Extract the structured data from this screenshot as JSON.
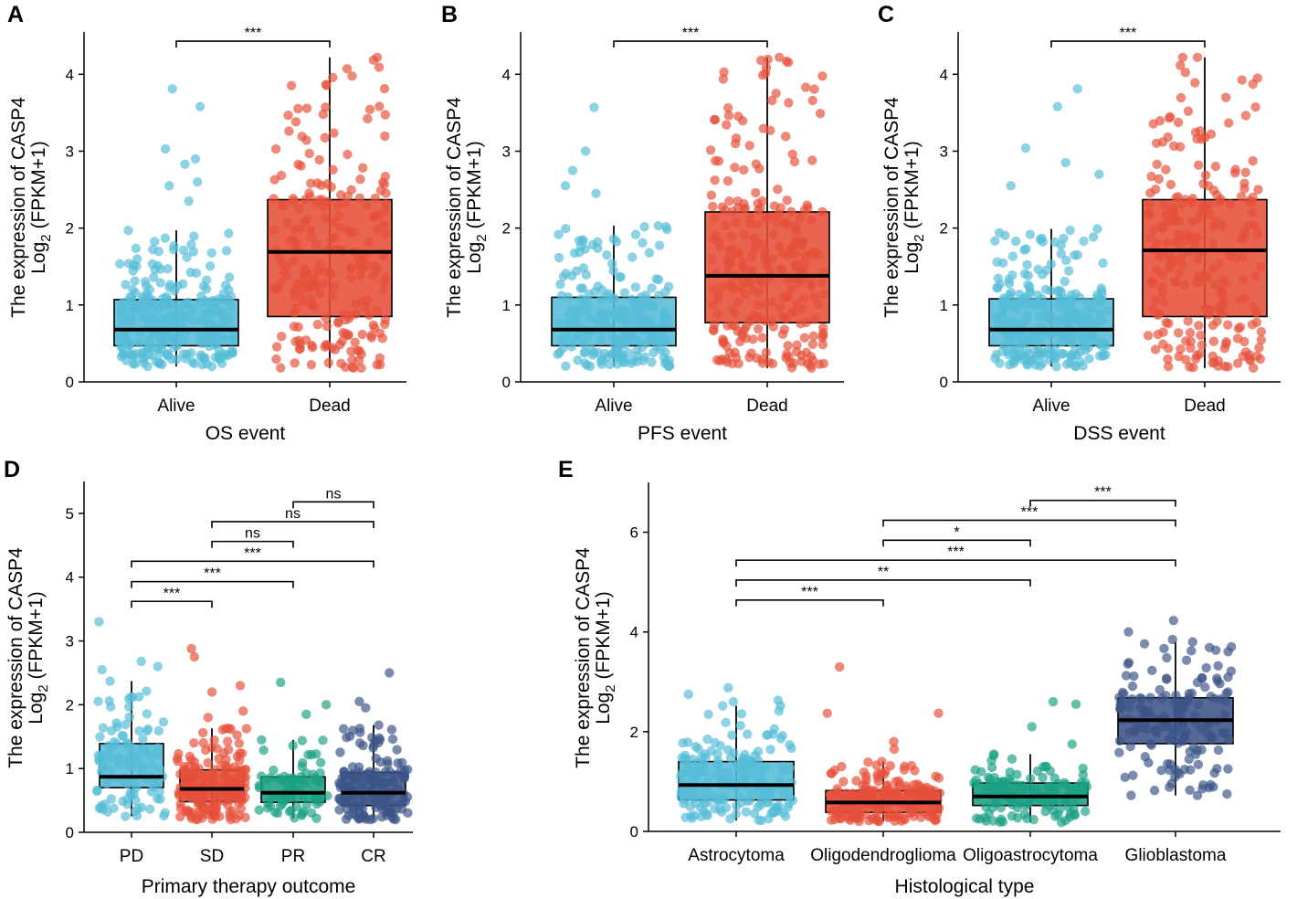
{
  "y_title_line1": "The expression of CASP4",
  "y_title_line2_prefix": "Log",
  "y_title_line2_sub": "2",
  "y_title_line2_suffix": " (FPKM+1)",
  "colors": {
    "blue": "#56BCD7",
    "red": "#E6503A",
    "green": "#1BA084",
    "navy": "#3C5488"
  },
  "chart_data": [
    {
      "panel": "A",
      "type": "box",
      "xlabel": "OS event",
      "ylim": [
        0,
        4.55
      ],
      "yticks": [
        0,
        1,
        2,
        3,
        4
      ],
      "categories": [
        "Alive",
        "Dead"
      ],
      "boxes": [
        {
          "q1": 0.47,
          "median": 0.68,
          "q3": 1.07,
          "whisker_low": 0.2,
          "whisker_high": 1.97,
          "n": 260,
          "outliers": [
            2.83,
            2.55,
            2.9,
            2.6,
            2.35,
            3.03,
            3.58,
            3.81
          ]
        },
        {
          "q1": 0.85,
          "median": 1.69,
          "q3": 2.37,
          "whisker_low": 0.18,
          "whisker_high": 4.22,
          "n": 230,
          "outliers": []
        }
      ],
      "comparisons": [
        {
          "from": 0,
          "to": 1,
          "label": "***",
          "y": 4.43
        }
      ]
    },
    {
      "panel": "B",
      "type": "box",
      "xlabel": "PFS event",
      "ylim": [
        0,
        4.55
      ],
      "yticks": [
        0,
        1,
        2,
        3,
        4
      ],
      "categories": [
        "Alive",
        "Dead"
      ],
      "boxes": [
        {
          "q1": 0.47,
          "median": 0.68,
          "q3": 1.1,
          "whisker_low": 0.2,
          "whisker_high": 2.03,
          "n": 220,
          "outliers": [
            2.75,
            2.55,
            2.45,
            3.0,
            3.57
          ]
        },
        {
          "q1": 0.77,
          "median": 1.38,
          "q3": 2.21,
          "whisker_low": 0.18,
          "whisker_high": 4.22,
          "n": 270,
          "outliers": []
        }
      ],
      "comparisons": [
        {
          "from": 0,
          "to": 1,
          "label": "***",
          "y": 4.43
        }
      ]
    },
    {
      "panel": "C",
      "type": "box",
      "xlabel": "DSS event",
      "ylim": [
        0,
        4.55
      ],
      "yticks": [
        0,
        1,
        2,
        3,
        4
      ],
      "categories": [
        "Alive",
        "Dead"
      ],
      "boxes": [
        {
          "q1": 0.47,
          "median": 0.68,
          "q3": 1.08,
          "whisker_low": 0.2,
          "whisker_high": 1.99,
          "n": 260,
          "outliers": [
            2.85,
            2.55,
            2.7,
            3.04,
            3.58,
            3.81
          ]
        },
        {
          "q1": 0.85,
          "median": 1.71,
          "q3": 2.37,
          "whisker_low": 0.18,
          "whisker_high": 4.22,
          "n": 230,
          "outliers": []
        }
      ],
      "comparisons": [
        {
          "from": 0,
          "to": 1,
          "label": "***",
          "y": 4.43
        }
      ]
    },
    {
      "panel": "D",
      "type": "box",
      "xlabel": "Primary therapy outcome",
      "ylim": [
        0,
        5.5
      ],
      "yticks": [
        0,
        1,
        2,
        3,
        4,
        5
      ],
      "categories": [
        "PD",
        "SD",
        "PR",
        "CR"
      ],
      "boxes": [
        {
          "q1": 0.7,
          "median": 0.87,
          "q3": 1.39,
          "whisker_low": 0.25,
          "whisker_high": 2.37,
          "n": 110,
          "outliers": [
            2.6,
            2.68,
            2.55,
            3.3
          ]
        },
        {
          "q1": 0.48,
          "median": 0.68,
          "q3": 0.98,
          "whisker_low": 0.2,
          "whisker_high": 1.63,
          "n": 170,
          "outliers": [
            1.8,
            2.3,
            2.75,
            2.88,
            2.2,
            1.9
          ]
        },
        {
          "q1": 0.47,
          "median": 0.62,
          "q3": 0.87,
          "whisker_low": 0.22,
          "whisker_high": 1.45,
          "n": 70,
          "outliers": [
            1.85,
            2.0,
            2.35
          ]
        },
        {
          "q1": 0.42,
          "median": 0.62,
          "q3": 0.94,
          "whisker_low": 0.2,
          "whisker_high": 1.68,
          "n": 150,
          "outliers": [
            1.95,
            2.05,
            2.5
          ]
        }
      ],
      "comparisons": [
        {
          "from": 0,
          "to": 1,
          "label": "***",
          "y": 3.62
        },
        {
          "from": 0,
          "to": 2,
          "label": "***",
          "y": 3.93
        },
        {
          "from": 0,
          "to": 3,
          "label": "***",
          "y": 4.25
        },
        {
          "from": 1,
          "to": 2,
          "label": "ns",
          "y": 4.56
        },
        {
          "from": 1,
          "to": 3,
          "label": "ns",
          "y": 4.87
        },
        {
          "from": 2,
          "to": 3,
          "label": "ns",
          "y": 5.18
        }
      ]
    },
    {
      "panel": "E",
      "type": "box",
      "xlabel": "Histological type",
      "ylim": [
        0,
        7.0
      ],
      "yticks": [
        0,
        2,
        4,
        6
      ],
      "categories": [
        "Astrocytoma",
        "Oligodendroglioma",
        "Oligoastrocytoma",
        "Glioblastoma"
      ],
      "boxes": [
        {
          "q1": 0.63,
          "median": 0.93,
          "q3": 1.4,
          "whisker_low": 0.22,
          "whisker_high": 2.52,
          "n": 190,
          "outliers": [
            2.63,
            2.6,
            2.88,
            2.75
          ]
        },
        {
          "q1": 0.38,
          "median": 0.58,
          "q3": 0.82,
          "whisker_low": 0.2,
          "whisker_high": 1.4,
          "n": 190,
          "outliers": [
            1.65,
            1.8,
            2.37,
            2.37,
            3.3
          ]
        },
        {
          "q1": 0.52,
          "median": 0.7,
          "q3": 0.97,
          "whisker_low": 0.18,
          "whisker_high": 1.55,
          "n": 130,
          "outliers": [
            1.75,
            2.1,
            2.55,
            2.6
          ]
        },
        {
          "q1": 1.76,
          "median": 2.23,
          "q3": 2.68,
          "whisker_low": 0.72,
          "whisker_high": 3.8,
          "n": 160,
          "outliers": [
            3.85,
            4.0,
            4.23
          ]
        }
      ],
      "comparisons": [
        {
          "from": 0,
          "to": 1,
          "label": "***",
          "y": 4.64
        },
        {
          "from": 0,
          "to": 2,
          "label": "**",
          "y": 5.04
        },
        {
          "from": 0,
          "to": 3,
          "label": "***",
          "y": 5.44
        },
        {
          "from": 1,
          "to": 2,
          "label": "*",
          "y": 5.84
        },
        {
          "from": 1,
          "to": 3,
          "label": "***",
          "y": 6.24
        },
        {
          "from": 2,
          "to": 3,
          "label": "***",
          "y": 6.64
        }
      ]
    }
  ]
}
